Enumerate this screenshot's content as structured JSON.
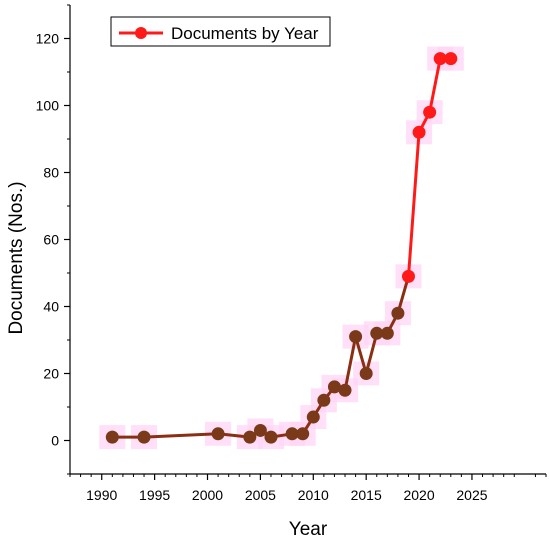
{
  "chart_data": {
    "type": "line",
    "title": "",
    "xlabel": "Year",
    "ylabel": "Documents (Nos.)",
    "xlim": [
      1987,
      2032
    ],
    "ylim": [
      -10,
      130
    ],
    "x_ticks": [
      1990,
      1995,
      2000,
      2005,
      2010,
      2015,
      2020,
      2025
    ],
    "y_ticks": [
      0,
      20,
      40,
      60,
      80,
      100,
      120
    ],
    "grid": false,
    "legend_position": "top-left",
    "series": [
      {
        "name": "Documents by Year",
        "color": "#ff1a1a",
        "marker_color": "#7a3a1a",
        "x": [
          1991,
          1994,
          2001,
          2004,
          2005,
          2006,
          2008,
          2009,
          2010,
          2011,
          2012,
          2013,
          2014,
          2015,
          2016,
          2017,
          2018,
          2019,
          2020,
          2021,
          2022,
          2023
        ],
        "y": [
          1,
          1,
          2,
          1,
          3,
          1,
          2,
          2,
          7,
          12,
          16,
          15,
          31,
          20,
          32,
          32,
          38,
          49,
          92,
          98,
          114,
          114
        ]
      }
    ]
  }
}
